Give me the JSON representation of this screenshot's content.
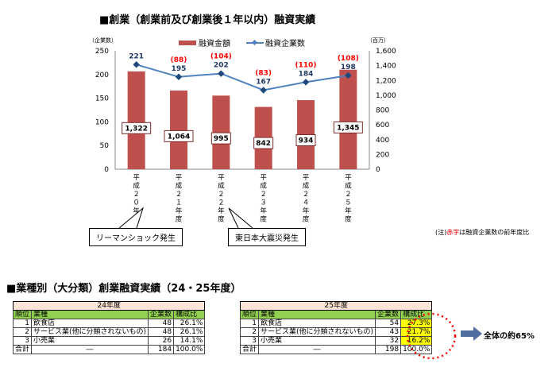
{
  "chart_title": "■創業（創業前及び創業後１年以内）融資実績",
  "note_prefix": "(注)",
  "note_red": "赤字",
  "note_suffix": "は融資企業数の前年度比",
  "callouts": [
    "リーマンショック発生",
    "東日本大震災発生"
  ],
  "chart_data": {
    "type": "bar+line",
    "categories": [
      "平成２０年度",
      "平成２１年度",
      "平成２２年度",
      "平成２３年度",
      "平成２４年度",
      "平成２５年度"
    ],
    "series": [
      {
        "name": "融資金額",
        "axis": "right",
        "values": [
          1322,
          1064,
          995,
          842,
          934,
          1345
        ],
        "labels": [
          "1,322",
          "1,064",
          "995",
          "842",
          "934",
          "1,345"
        ],
        "color": "#c0504d"
      },
      {
        "name": "融資企業数",
        "axis": "left",
        "values": [
          221,
          195,
          202,
          167,
          184,
          198
        ],
        "color": "#4f81bd"
      }
    ],
    "yoy_labels": [
      "",
      "(88)",
      "(104)",
      "(83)",
      "(110)",
      "(108)"
    ],
    "left_axis": {
      "label": "（企業数）",
      "range": [
        0,
        250
      ],
      "ticks": [
        "0",
        "50",
        "100",
        "150",
        "200",
        "250"
      ]
    },
    "right_axis": {
      "label": "（百万）",
      "range": [
        0,
        1600
      ],
      "ticks": [
        "0",
        "200",
        "400",
        "600",
        "800",
        "1,000",
        "1,200",
        "1,400",
        "1,600"
      ]
    },
    "legend": "top"
  },
  "section2_title": "■業種別（大分類）創業融資実績（24・25年度）",
  "headers": [
    "順位",
    "業種",
    "企業数",
    "構成比"
  ],
  "tables": [
    {
      "year": "24年度",
      "rows": [
        [
          "1",
          "飲食店",
          "48",
          "26.1%"
        ],
        [
          "2",
          "サービス業(他に分類されないもの)",
          "48",
          "26.1%"
        ],
        [
          "3",
          "小売業",
          "26",
          "14.1%"
        ]
      ],
      "total": [
        "合計",
        "―",
        "184",
        "100.0%"
      ]
    },
    {
      "year": "25年度",
      "rows": [
        [
          "1",
          "飲食店",
          "54",
          "27.3%"
        ],
        [
          "2",
          "サービス業(他に分類されないもの)",
          "43",
          "21.7%"
        ],
        [
          "3",
          "小売業",
          "32",
          "16.2%"
        ]
      ],
      "total": [
        "合計",
        "―",
        "198",
        "100.0%"
      ]
    }
  ],
  "summary": "全体の約65%"
}
